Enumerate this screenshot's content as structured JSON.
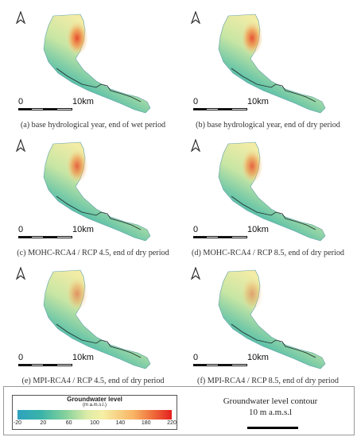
{
  "panels": [
    {
      "caption": "(a) base hydrological year, end of wet period",
      "scale_zero": "0",
      "scale_km": "10km",
      "high_intensity": 1.0
    },
    {
      "caption": "(b) base hydrological year, end of dry period",
      "scale_zero": "0",
      "scale_km": "10km",
      "high_intensity": 0.95
    },
    {
      "caption": "(c) MOHC-RCA4 / RCP 4.5, end of dry period",
      "scale_zero": "0",
      "scale_km": "10km",
      "high_intensity": 0.85
    },
    {
      "caption": "(d) MOHC-RCA4 / RCP 8.5, end of dry period",
      "scale_zero": "0",
      "scale_km": "10km",
      "high_intensity": 0.85
    },
    {
      "caption": "(e) MPI-RCA4 / RCP 4.5, end of dry period",
      "scale_zero": "0",
      "scale_km": "10km",
      "high_intensity": 0.55
    },
    {
      "caption": "(f) MPI-RCA4 / RCP 8.5, end of dry period",
      "scale_zero": "0",
      "scale_km": "10km",
      "high_intensity": 0.45
    }
  ],
  "legend": {
    "title": "Groundwater level",
    "unit": "(m a.m.s.l.)",
    "ticks": [
      "-20",
      "20",
      "60",
      "100",
      "140",
      "180",
      "220"
    ],
    "range": [
      -20,
      220
    ],
    "colors": [
      "#2ea2bf",
      "#7fcf9c",
      "#f6efa6",
      "#ef6b3a",
      "#e41f1f"
    ]
  },
  "contour_legend": {
    "title": "Groundwater level contour",
    "label": "10 m a.m.s.l"
  }
}
